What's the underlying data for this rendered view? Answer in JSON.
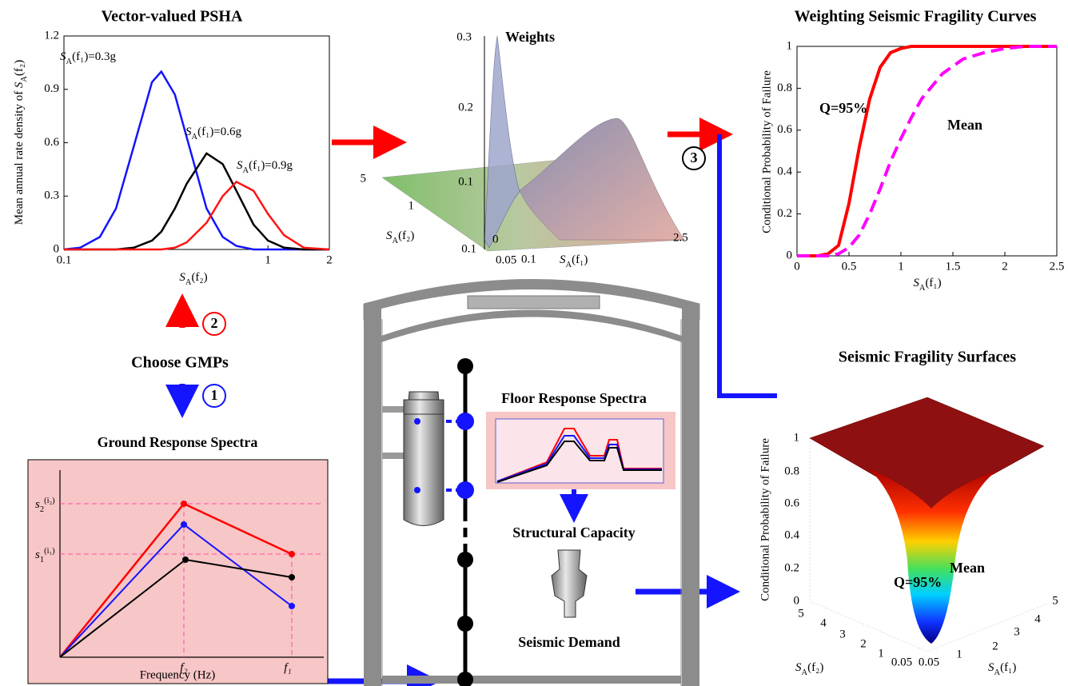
{
  "chart_data": [
    {
      "type": "line",
      "title": "Vector-valued PSHA",
      "xlabel": {
        "symbol": "S",
        "sub": "A",
        "arg": "(f₂)"
      },
      "ylabel": {
        "prefix": "Mean annual rate density of ",
        "symbol": "S",
        "sub": "A",
        "arg": "(f₂)"
      },
      "xscale": "log",
      "xlim": [
        0.1,
        2
      ],
      "xticks": [
        0.1,
        1,
        2
      ],
      "ylim": [
        0,
        1.2
      ],
      "yticks": [
        0,
        0.3,
        0.6,
        0.9,
        1.2
      ],
      "x": [
        0.1,
        0.12,
        0.15,
        0.18,
        0.22,
        0.27,
        0.3,
        0.35,
        0.4,
        0.5,
        0.6,
        0.7,
        0.85,
        1,
        1.2,
        1.5,
        2
      ],
      "series": [
        {
          "name": {
            "symbol": "S",
            "sub": "A",
            "arg": "(f₁)=0.3g"
          },
          "color": "#1414ff",
          "values": [
            0,
            0.01,
            0.07,
            0.23,
            0.58,
            0.94,
            1.0,
            0.87,
            0.63,
            0.23,
            0.07,
            0.02,
            0,
            0,
            0,
            0,
            0
          ]
        },
        {
          "name": {
            "symbol": "S",
            "sub": "A",
            "arg": "(f₁)=0.6g"
          },
          "color": "#000000",
          "values": [
            0,
            0,
            0,
            0,
            0.01,
            0.05,
            0.1,
            0.23,
            0.37,
            0.54,
            0.48,
            0.33,
            0.14,
            0.05,
            0.01,
            0,
            0
          ]
        },
        {
          "name": {
            "symbol": "S",
            "sub": "A",
            "arg": "(f₁)=0.9g"
          },
          "color": "#ff1414",
          "values": [
            0,
            0,
            0,
            0,
            0,
            0,
            0,
            0.01,
            0.04,
            0.15,
            0.3,
            0.38,
            0.33,
            0.2,
            0.08,
            0.01,
            0
          ]
        }
      ]
    },
    {
      "type": "line",
      "title": "Weighting Seismic Fragility Curves",
      "xlabel": {
        "symbol": "S",
        "sub": "A",
        "arg": "(f₁)"
      },
      "ylabel": "Conditional Probability of Failure",
      "xscale": "linear",
      "xlim": [
        0,
        2.5
      ],
      "xticks": [
        0,
        0.5,
        1,
        1.5,
        2,
        2.5
      ],
      "ylim": [
        0,
        1
      ],
      "yticks": [
        0,
        0.2,
        0.4,
        0.6,
        0.8,
        1
      ],
      "x": [
        0,
        0.2,
        0.3,
        0.4,
        0.5,
        0.6,
        0.7,
        0.8,
        0.9,
        1,
        1.1,
        1.2,
        1.4,
        1.6,
        1.8,
        2,
        2.2,
        2.5
      ],
      "series": [
        {
          "name": "Q=95%",
          "color": "#ff0000",
          "dash": false,
          "values": [
            0,
            0,
            0.01,
            0.05,
            0.25,
            0.52,
            0.75,
            0.9,
            0.97,
            0.99,
            1,
            1,
            1,
            1,
            1,
            1,
            1,
            1
          ]
        },
        {
          "name": "Mean",
          "color": "#ff00ff",
          "dash": true,
          "values": [
            0,
            0,
            0,
            0.01,
            0.04,
            0.1,
            0.2,
            0.32,
            0.45,
            0.56,
            0.66,
            0.75,
            0.87,
            0.94,
            0.97,
            0.99,
            1,
            1
          ]
        }
      ]
    }
  ],
  "weights_plot": {
    "title": "Weights",
    "zticks": [
      "0.1",
      "0.2",
      "0.3"
    ],
    "yticks": [
      "5",
      "1",
      "0.1"
    ],
    "xticks": [
      "0",
      "0.05",
      "0.1",
      "2.5"
    ],
    "xlabel": {
      "symbol": "S",
      "sub": "A",
      "arg": "(f₁)"
    },
    "ylabel": {
      "symbol": "S",
      "sub": "A",
      "arg": "(f₂)"
    }
  },
  "steps": {
    "choose": "Choose GMPs",
    "one": "1",
    "two": "2",
    "three": "3"
  },
  "ground_spectra": {
    "title": "Ground Response Spectra",
    "xlabel": "Frequency (Hz)",
    "f2": "f₂",
    "f1": "f₁",
    "s2": {
      "base": "s",
      "sub": "2",
      "sup": "(i₂)"
    },
    "s1": {
      "base": "s",
      "sub": "1",
      "sup": "(i₁)"
    }
  },
  "plant": {
    "floor_title": "Floor Response Spectra",
    "capacity": "Structural Capacity",
    "demand": "Seismic Demand"
  },
  "fragility_surface": {
    "title": "Seismic Fragility Surfaces",
    "zlabel": "Conditional Probability of Failure",
    "zticks": [
      "0",
      "0.2",
      "0.4",
      "0.6",
      "0.8",
      "1"
    ],
    "left_ticks": [
      "5",
      "4",
      "3",
      "2",
      "1",
      "0.05"
    ],
    "right_ticks": [
      "0.05",
      "1",
      "2",
      "3",
      "4",
      "5"
    ],
    "xlabel": {
      "symbol": "S",
      "sub": "A",
      "arg": "(f₁)"
    },
    "ylabel": {
      "symbol": "S",
      "sub": "A",
      "arg": "(f₂)"
    },
    "q_label": "Q=95%",
    "mean_label": "Mean"
  }
}
